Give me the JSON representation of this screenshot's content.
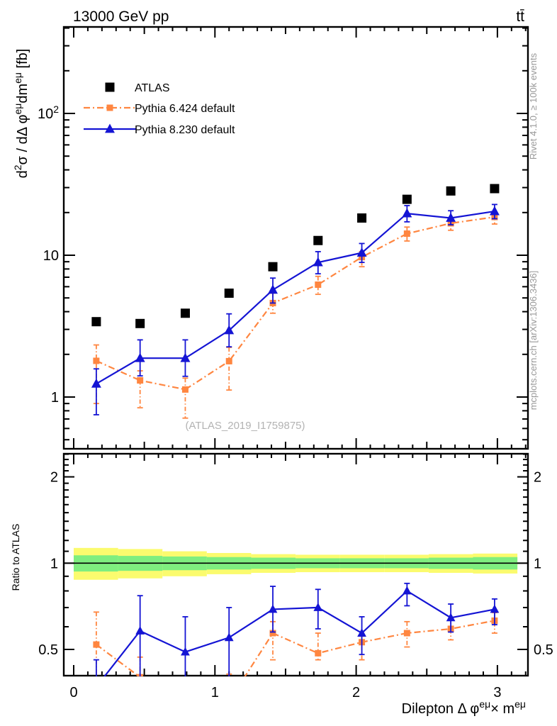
{
  "header": {
    "title_left": "13000 GeV pp",
    "title_right": "tt̄"
  },
  "side_notes": {
    "rivet": "Rivet 4.1.0, ≥ 100k events",
    "mcplots": "mcplots.cern.ch [arXiv:1306.3436]"
  },
  "watermark": "(ATLAS_2019_I1759875)",
  "colors": {
    "atlas": "#000000",
    "pythia6": "#ff8640",
    "pythia8": "#1414d4",
    "band_yellow": "#fbfb6e",
    "band_green": "#7fee7f"
  },
  "chart_data": [
    {
      "id": "main",
      "type": "line",
      "title": "13000 GeV pp",
      "y_scale": "log10",
      "x_range": [
        -0.07,
        3.216
      ],
      "y_range": [
        0.43,
        407
      ],
      "grid": false,
      "legend_position": "top-left-inside",
      "ylabel_parts": [
        {
          "t": "d"
        },
        {
          "t": "2",
          "sup": true
        },
        {
          "t": "σ / dΔ φ"
        },
        {
          "t": "eμ",
          "sup": true
        },
        {
          "t": "dm"
        },
        {
          "t": "eμ",
          "sup": true
        },
        {
          "t": " [fb]"
        }
      ],
      "y_ticks_labeled": [
        {
          "v": 1,
          "t": "1"
        },
        {
          "v": 10,
          "t": "10"
        },
        {
          "v": 100,
          "t": "10",
          "sup": "2"
        }
      ],
      "x_ticks_labeled": [],
      "watermark": "(ATLAS_2019_I1759875)",
      "series": [
        {
          "name": "ATLAS",
          "color": "#000000",
          "marker": "square",
          "marker_size": 13,
          "line": "none",
          "x": [
            0.16,
            0.47,
            0.79,
            1.1,
            1.41,
            1.73,
            2.04,
            2.36,
            2.67,
            2.98
          ],
          "y": [
            3.4,
            3.3,
            3.9,
            5.4,
            8.3,
            12.7,
            18.3,
            24.8,
            28.4,
            29.5
          ]
        },
        {
          "name": "Pythia 6.424 default",
          "color": "#ff8640",
          "marker": "square",
          "marker_size": 9,
          "line": "dashdot",
          "x": [
            0.16,
            0.47,
            0.79,
            1.1,
            1.41,
            1.73,
            2.04,
            2.36,
            2.67,
            2.98
          ],
          "y": [
            1.8,
            1.31,
            1.13,
            1.79,
            4.6,
            6.2,
            9.7,
            14.2,
            16.8,
            18.6
          ],
          "y_lo": [
            0.9,
            0.84,
            0.71,
            1.12,
            3.9,
            5.3,
            8.3,
            12.6,
            15.0,
            16.6
          ],
          "y_hi": [
            2.33,
            1.53,
            1.36,
            2.24,
            5.4,
            7.1,
            10.6,
            15.8,
            18.1,
            19.9
          ]
        },
        {
          "name": "Pythia 8.230 default",
          "color": "#1414d4",
          "marker": "triangle",
          "marker_size": 12,
          "line": "solid",
          "x": [
            0.16,
            0.47,
            0.79,
            1.1,
            1.41,
            1.73,
            2.04,
            2.36,
            2.67,
            2.98
          ],
          "y": [
            1.24,
            1.88,
            1.88,
            2.95,
            5.7,
            8.9,
            10.4,
            19.7,
            18.3,
            20.4
          ],
          "y_lo": [
            0.75,
            1.41,
            1.4,
            2.26,
            4.6,
            7.4,
            8.9,
            17.2,
            16.4,
            18.1
          ],
          "y_hi": [
            1.58,
            2.53,
            2.53,
            3.86,
            6.9,
            10.6,
            12.1,
            22.4,
            20.6,
            22.8
          ]
        }
      ]
    },
    {
      "id": "ratio",
      "type": "line",
      "ylabel": "Ratio to ATLAS",
      "y_scale": "log2",
      "x_range": [
        -0.07,
        3.216
      ],
      "y_range": [
        0.405,
        2.41
      ],
      "grid": false,
      "y_ticks_labeled": [
        {
          "v": 0.5,
          "t": "0.5"
        },
        {
          "v": 1,
          "t": "1"
        },
        {
          "v": 2,
          "t": "2"
        }
      ],
      "x_ticks_labeled": [
        {
          "v": 0,
          "t": "0"
        },
        {
          "v": 1,
          "t": "1"
        },
        {
          "v": 2,
          "t": "2"
        },
        {
          "v": 3,
          "t": "3"
        }
      ],
      "xlabel_parts": [
        {
          "t": "Dilepton Δ φ"
        },
        {
          "t": "eμ",
          "sup": true
        },
        {
          "t": "× m"
        },
        {
          "t": "eμ",
          "sup": true
        }
      ],
      "reference_line": 1,
      "bands": {
        "bin_edges": [
          0,
          0.3142,
          0.6283,
          0.9425,
          1.2566,
          1.5708,
          1.885,
          2.1991,
          2.5133,
          2.8274,
          3.1416
        ],
        "yellow_hi": [
          1.13,
          1.12,
          1.1,
          1.085,
          1.075,
          1.07,
          1.07,
          1.07,
          1.075,
          1.08
        ],
        "yellow_lo": [
          0.875,
          0.885,
          0.9,
          0.915,
          0.925,
          0.93,
          0.93,
          0.93,
          0.925,
          0.92
        ],
        "green_hi": [
          1.065,
          1.06,
          1.055,
          1.05,
          1.045,
          1.04,
          1.04,
          1.04,
          1.045,
          1.05
        ],
        "green_lo": [
          0.935,
          0.94,
          0.945,
          0.95,
          0.955,
          0.96,
          0.96,
          0.96,
          0.955,
          0.95
        ]
      },
      "series": [
        {
          "name": "Pythia 6.424 default",
          "color": "#ff8640",
          "marker": "square",
          "marker_size": 9,
          "line": "dashdot",
          "x": [
            0.16,
            0.47,
            0.79,
            1.1,
            1.41,
            1.73,
            2.04,
            2.36,
            2.67,
            2.98
          ],
          "y": [
            0.52,
            0.4,
            0.29,
            0.33,
            0.57,
            0.485,
            0.53,
            0.57,
            0.59,
            0.63
          ],
          "y_lo": [
            0.3,
            0.33,
            0.24,
            0.26,
            0.46,
            0.46,
            0.46,
            0.51,
            0.54,
            0.57
          ],
          "y_hi": [
            0.675,
            0.47,
            0.35,
            0.41,
            0.625,
            0.57,
            0.556,
            0.625,
            0.635,
            0.672
          ]
        },
        {
          "name": "Pythia 8.230 default",
          "color": "#1414d4",
          "marker": "triangle",
          "marker_size": 11,
          "line": "solid",
          "x": [
            0.16,
            0.47,
            0.79,
            1.1,
            1.41,
            1.73,
            2.04,
            2.36,
            2.67,
            2.98
          ],
          "y": [
            0.37,
            0.58,
            0.49,
            0.55,
            0.69,
            0.7,
            0.57,
            0.8,
            0.645,
            0.69
          ],
          "y_lo": [
            0.28,
            0.36,
            0.33,
            0.38,
            0.575,
            0.59,
            0.48,
            0.71,
            0.575,
            0.61
          ],
          "y_hi": [
            0.46,
            0.77,
            0.65,
            0.7,
            0.83,
            0.81,
            0.65,
            0.85,
            0.72,
            0.75
          ]
        }
      ]
    }
  ],
  "legend": {
    "items": [
      {
        "label": "ATLAS"
      },
      {
        "label": "Pythia 6.424 default"
      },
      {
        "label": "Pythia 8.230 default"
      }
    ]
  }
}
